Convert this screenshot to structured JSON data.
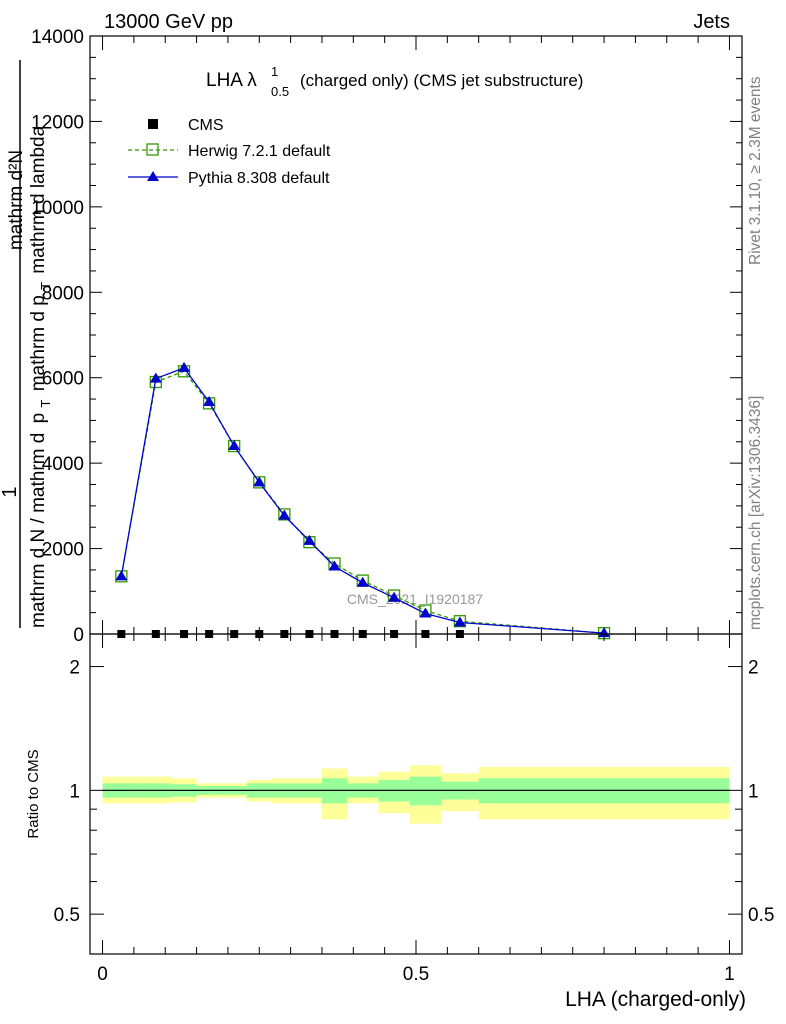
{
  "header": {
    "left": "13000 GeV pp",
    "right": "Jets"
  },
  "side": {
    "rivet": "Rivet 3.1.10, ≥ 2.3M events",
    "mcplots": "mcplots.cern.ch [arXiv:1306.3436]"
  },
  "watermark": "CMS_2021_I1920187",
  "colors": {
    "herwig": "#339900",
    "pythia": "#0000cc",
    "band_inner": "#99ff99",
    "band_outer": "#ffff99"
  },
  "legend": {
    "cms": "CMS",
    "herwig": "Herwig 7.2.1 default",
    "pythia": "Pythia 8.308 default"
  },
  "chart_data": [
    {
      "type": "line",
      "title_main": "LHA λ",
      "title_sup": "1",
      "title_sub": "0.5",
      "title_rest": "(charged only) (CMS jet substructure)",
      "ylabel_top": "1",
      "ylabel_num": "mathrm d²N",
      "ylabel_den": "mathrm d N / mathrm d p_T mathrm d p_T mathrm d lambda",
      "ylabel_den_parts": [
        "mathrm d N / mathrm d",
        "p",
        "T",
        "mathrm d p",
        "T",
        "mathrm d lambda"
      ],
      "xlim": [
        -0.02,
        1.02
      ],
      "ylim": [
        0,
        14000
      ],
      "yticks": [
        0,
        2000,
        4000,
        6000,
        8000,
        10000,
        12000,
        14000
      ],
      "ytick_labels": [
        "0",
        "2000",
        "4000",
        "6000",
        "8000",
        "10000",
        "12000",
        "14000"
      ],
      "series": [
        {
          "name": "CMS",
          "x": [
            0.03,
            0.085,
            0.13,
            0.17,
            0.21,
            0.25,
            0.29,
            0.33,
            0.37,
            0.415,
            0.465,
            0.515,
            0.57
          ],
          "values": [
            0,
            0,
            0,
            0,
            0,
            0,
            0,
            0,
            0,
            0,
            0,
            0,
            0
          ]
        },
        {
          "name": "Herwig 7.2.1 default",
          "x": [
            0.03,
            0.085,
            0.13,
            0.17,
            0.21,
            0.25,
            0.29,
            0.33,
            0.37,
            0.415,
            0.465,
            0.515,
            0.57,
            0.8
          ],
          "values": [
            1350,
            5900,
            6150,
            5400,
            4400,
            3550,
            2800,
            2150,
            1650,
            1250,
            900,
            550,
            300,
            20
          ]
        },
        {
          "name": "Pythia 8.308 default",
          "x": [
            0.03,
            0.085,
            0.13,
            0.17,
            0.21,
            0.25,
            0.29,
            0.33,
            0.37,
            0.415,
            0.465,
            0.515,
            0.57,
            0.8
          ],
          "values": [
            1350,
            5980,
            6230,
            5430,
            4400,
            3550,
            2770,
            2180,
            1580,
            1200,
            850,
            480,
            270,
            20
          ]
        }
      ]
    },
    {
      "type": "area",
      "ylabel": "Ratio to CMS",
      "xlabel": "LHA (charged-only)",
      "xlim": [
        -0.02,
        1.02
      ],
      "ylim": [
        0.4,
        2.4
      ],
      "yscale": "log",
      "yticks": [
        0.5,
        1,
        2
      ],
      "ytick_labels": [
        "0.5",
        "1",
        "2"
      ],
      "xticks": [
        0,
        0.5,
        1
      ],
      "xtick_labels": [
        "0",
        "0.5",
        "1"
      ],
      "bins": [
        {
          "x0": 0.0,
          "x1": 0.06,
          "inner": [
            0.96,
            1.04
          ],
          "outer": [
            0.93,
            1.08
          ]
        },
        {
          "x0": 0.06,
          "x1": 0.11,
          "inner": [
            0.96,
            1.04
          ],
          "outer": [
            0.93,
            1.08
          ]
        },
        {
          "x0": 0.11,
          "x1": 0.15,
          "inner": [
            0.965,
            1.035
          ],
          "outer": [
            0.935,
            1.07
          ]
        },
        {
          "x0": 0.15,
          "x1": 0.19,
          "inner": [
            0.975,
            1.025
          ],
          "outer": [
            0.96,
            1.04
          ]
        },
        {
          "x0": 0.19,
          "x1": 0.23,
          "inner": [
            0.975,
            1.025
          ],
          "outer": [
            0.96,
            1.04
          ]
        },
        {
          "x0": 0.23,
          "x1": 0.27,
          "inner": [
            0.96,
            1.04
          ],
          "outer": [
            0.94,
            1.06
          ]
        },
        {
          "x0": 0.27,
          "x1": 0.31,
          "inner": [
            0.96,
            1.04
          ],
          "outer": [
            0.93,
            1.07
          ]
        },
        {
          "x0": 0.31,
          "x1": 0.35,
          "inner": [
            0.96,
            1.04
          ],
          "outer": [
            0.93,
            1.07
          ]
        },
        {
          "x0": 0.35,
          "x1": 0.39,
          "inner": [
            0.93,
            1.07
          ],
          "outer": [
            0.85,
            1.13
          ]
        },
        {
          "x0": 0.39,
          "x1": 0.44,
          "inner": [
            0.96,
            1.04
          ],
          "outer": [
            0.93,
            1.08
          ]
        },
        {
          "x0": 0.44,
          "x1": 0.49,
          "inner": [
            0.94,
            1.06
          ],
          "outer": [
            0.88,
            1.11
          ]
        },
        {
          "x0": 0.49,
          "x1": 0.54,
          "inner": [
            0.92,
            1.08
          ],
          "outer": [
            0.83,
            1.15
          ]
        },
        {
          "x0": 0.54,
          "x1": 0.6,
          "inner": [
            0.95,
            1.05
          ],
          "outer": [
            0.89,
            1.1
          ]
        },
        {
          "x0": 0.6,
          "x1": 1.0,
          "inner": [
            0.93,
            1.07
          ],
          "outer": [
            0.85,
            1.14
          ]
        }
      ]
    }
  ]
}
